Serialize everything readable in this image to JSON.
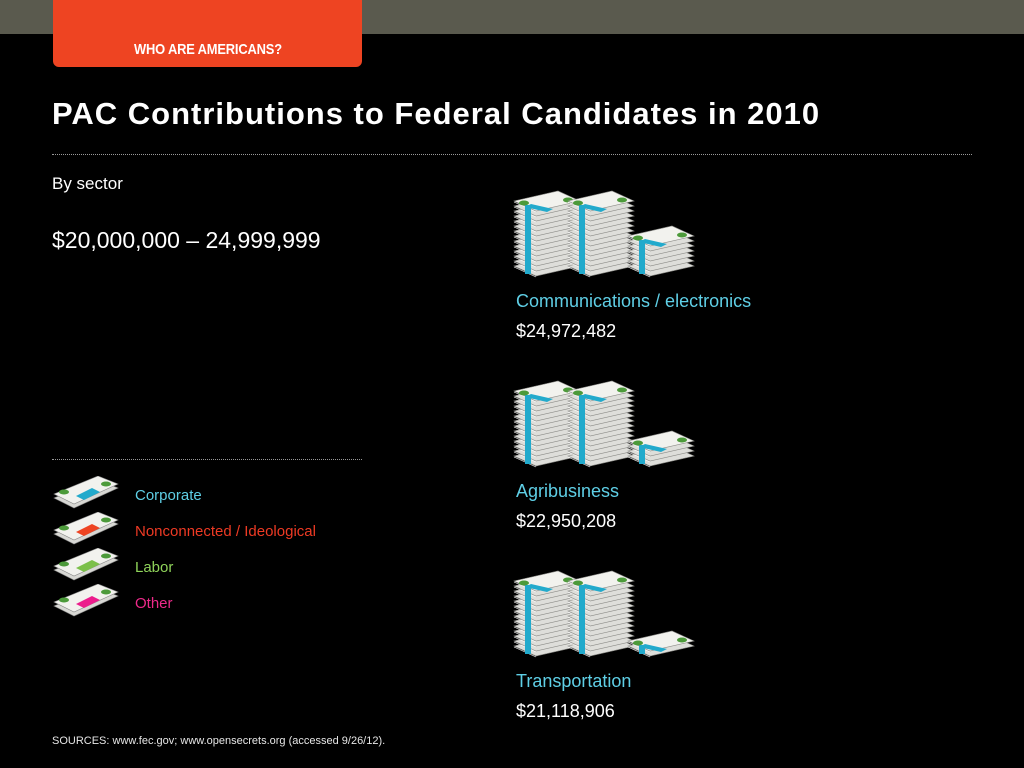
{
  "header": {
    "tab_label": "WHO ARE AMERICANS?"
  },
  "page": {
    "title": "PAC Contributions to Federal Candidates in 2010",
    "subtitle": "By sector",
    "range_label": "$20,000,000 – 24,999,999"
  },
  "chart_data": {
    "type": "pictograph",
    "title": "PAC Contributions to Federal Candidates in 2010",
    "subtitle": "By sector",
    "range": "$20,000,000 – 24,999,999",
    "legend": [
      {
        "label": "Corporate",
        "color": "#5fcfe6",
        "band_color": "#22aacc"
      },
      {
        "label": "Nonconnected / Ideological",
        "color": "#ee3a24",
        "band_color": "#ee4422"
      },
      {
        "label": "Labor",
        "color": "#8fd35a",
        "band_color": "#7cc04a"
      },
      {
        "label": "Other",
        "color": "#ee2a8a",
        "band_color": "#ec1c8c"
      }
    ],
    "sectors": [
      {
        "name": "Communications / electronics",
        "amount": 24972482,
        "value_label": "$24,972,482",
        "category": "Corporate"
      },
      {
        "name": "Agribusiness",
        "amount": 22950208,
        "value_label": "$22,950,208",
        "category": "Corporate"
      },
      {
        "name": "Transportation",
        "amount": 21118906,
        "value_label": "$21,118,906",
        "category": "Corporate"
      }
    ]
  },
  "footer": {
    "sources": "SOURCES: www.fec.gov; www.opensecrets.org (accessed 9/26/12)."
  }
}
